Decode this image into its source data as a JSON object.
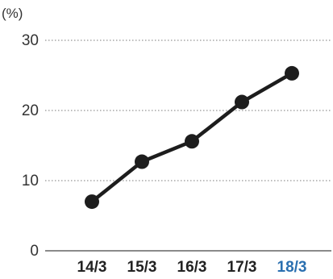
{
  "chart_data": {
    "type": "line",
    "unit_label": "(%)",
    "categories": [
      "14/3",
      "15/3",
      "16/3",
      "17/3",
      "18/3"
    ],
    "highlighted_category": "18/3",
    "series": [
      {
        "values": [
          7,
          12.7,
          15.6,
          21.2,
          25.3
        ]
      }
    ],
    "yticks": [
      "0",
      "10",
      "20",
      "30"
    ],
    "ylim": [
      0,
      30
    ],
    "grid": true,
    "colors": {
      "series": "#1d1d1d",
      "highlight": "#2a6fb0",
      "grid": "#7a7a7a"
    }
  }
}
